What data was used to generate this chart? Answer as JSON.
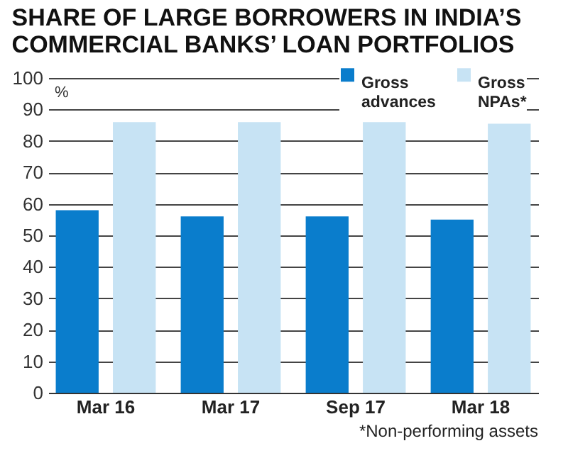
{
  "chart_data": {
    "type": "bar",
    "title": "SHARE OF LARGE BORROWERS IN INDIA’S COMMERCIAL BANKS’ LOAN PORTFOLIOS",
    "ylabel": "%",
    "categories": [
      "Mar 16",
      "Mar 17",
      "Sep 17",
      "Mar 18"
    ],
    "series": [
      {
        "name": "Gross advances",
        "color": "#0a7dcc",
        "values": [
          58,
          56,
          56,
          55
        ]
      },
      {
        "name": "Gross NPAs*",
        "color": "#c7e3f4",
        "values": [
          86,
          86,
          86,
          85.5
        ]
      }
    ],
    "ylim": [
      0,
      100
    ],
    "yticks": [
      0,
      10,
      20,
      30,
      40,
      50,
      60,
      70,
      80,
      90,
      100
    ],
    "grid": "y",
    "legend": "top right",
    "annotations": [
      "*Non-performing assets"
    ]
  }
}
